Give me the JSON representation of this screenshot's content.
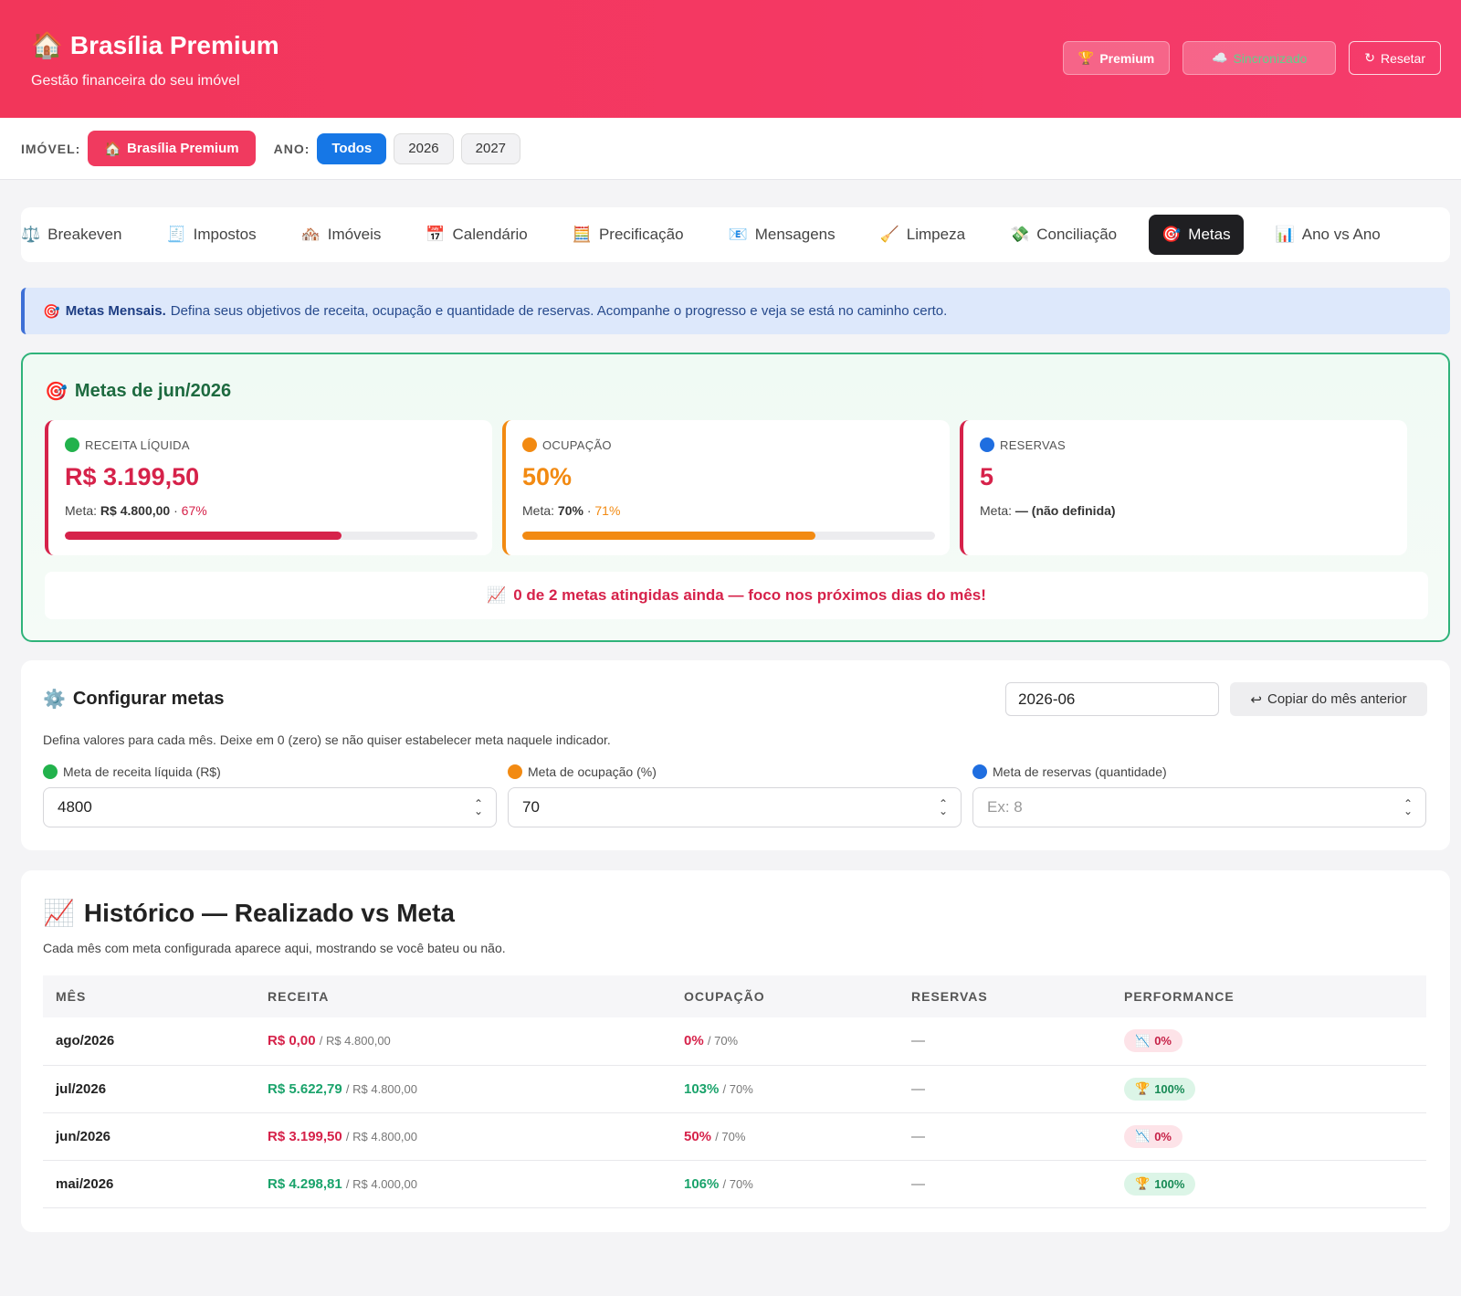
{
  "header": {
    "title": "Brasília Premium",
    "subtitle": "Gestão financeira do seu imóvel",
    "premium_label": "Premium",
    "sync_label": "Sincronizado",
    "reset_label": "Resetar"
  },
  "filters": {
    "imovel_label": "IMÓVEL:",
    "imovel_value": "Brasília Premium",
    "ano_label": "ANO:",
    "years": [
      "Todos",
      "2026",
      "2027"
    ],
    "active_year": "Todos"
  },
  "tabs": [
    {
      "icon": "⚖️",
      "label": "Breakeven"
    },
    {
      "icon": "🧾",
      "label": "Impostos"
    },
    {
      "icon": "🏘️",
      "label": "Imóveis"
    },
    {
      "icon": "📅",
      "label": "Calendário"
    },
    {
      "icon": "🧮",
      "label": "Precificação"
    },
    {
      "icon": "📧",
      "label": "Mensagens"
    },
    {
      "icon": "🧹",
      "label": "Limpeza"
    },
    {
      "icon": "💸",
      "label": "Conciliação"
    },
    {
      "icon": "🎯",
      "label": "Metas"
    },
    {
      "icon": "📊",
      "label": "Ano vs Ano"
    }
  ],
  "active_tab": "Metas",
  "banner": {
    "strong": "Metas Mensais.",
    "text": "Defina seus objetivos de receita, ocupação e quantidade de reservas. Acompanhe o progresso e veja se está no caminho certo."
  },
  "goals": {
    "title": "Metas de jun/2026",
    "metrics": [
      {
        "label": "RECEITA LÍQUIDA",
        "value": "R$ 3.199,50",
        "meta_prefix": "Meta:",
        "meta_value": "R$ 4.800,00",
        "pct": "67%",
        "progress": 0.67,
        "color": "#d6224a",
        "dot": "#22b24c"
      },
      {
        "label": "OCUPAÇÃO",
        "value": "50%",
        "meta_prefix": "Meta:",
        "meta_value": "70%",
        "pct": "71%",
        "progress": 0.71,
        "color": "#f28a12",
        "dot": "#f28a12"
      },
      {
        "label": "RESERVAS",
        "value": "5",
        "meta_prefix": "Meta:",
        "meta_value": "— (não definida)",
        "pct": "",
        "progress": null,
        "color": "#d6224a",
        "dot": "#1f6ee0"
      }
    ],
    "note": "0 de 2 metas atingidas ainda — foco nos próximos dias do mês!"
  },
  "config": {
    "title": "Configurar metas",
    "month": "2026-06",
    "copy_label": "Copiar do mês anterior",
    "description": "Defina valores para cada mês. Deixe em 0 (zero) se não quiser estabelecer meta naquele indicador.",
    "fields": [
      {
        "label": "Meta de receita líquida (R$)",
        "value": "4800",
        "placeholder": "",
        "dot": "#22b24c"
      },
      {
        "label": "Meta de ocupação (%)",
        "value": "70",
        "placeholder": "",
        "dot": "#f28a12"
      },
      {
        "label": "Meta de reservas (quantidade)",
        "value": "",
        "placeholder": "Ex: 8",
        "dot": "#1f6ee0"
      }
    ]
  },
  "history": {
    "title": "Histórico — Realizado vs Meta",
    "subtitle": "Cada mês com meta configurada aparece aqui, mostrando se você bateu ou não.",
    "columns": [
      "MÊS",
      "RECEITA",
      "OCUPAÇÃO",
      "RESERVAS",
      "PERFORMANCE"
    ],
    "rows": [
      {
        "mes": "ago/2026",
        "receita": "R$ 0,00",
        "receita_meta": "/ R$ 4.800,00",
        "receita_ok": false,
        "ocup": "0%",
        "ocup_meta": "/ 70%",
        "ocup_ok": false,
        "reservas": "—",
        "perf": "0%",
        "perf_icon": "📉",
        "perf_ok": false
      },
      {
        "mes": "jul/2026",
        "receita": "R$ 5.622,79",
        "receita_meta": "/ R$ 4.800,00",
        "receita_ok": true,
        "ocup": "103%",
        "ocup_meta": "/ 70%",
        "ocup_ok": true,
        "reservas": "—",
        "perf": "100%",
        "perf_icon": "🏆",
        "perf_ok": true
      },
      {
        "mes": "jun/2026",
        "receita": "R$ 3.199,50",
        "receita_meta": "/ R$ 4.800,00",
        "receita_ok": false,
        "ocup": "50%",
        "ocup_meta": "/ 70%",
        "ocup_ok": false,
        "reservas": "—",
        "perf": "0%",
        "perf_icon": "📉",
        "perf_ok": false
      },
      {
        "mes": "mai/2026",
        "receita": "R$ 4.298,81",
        "receita_meta": "/ R$ 4.000,00",
        "receita_ok": true,
        "ocup": "106%",
        "ocup_meta": "/ 70%",
        "ocup_ok": true,
        "reservas": "—",
        "perf": "100%",
        "perf_icon": "🏆",
        "perf_ok": true
      }
    ]
  }
}
